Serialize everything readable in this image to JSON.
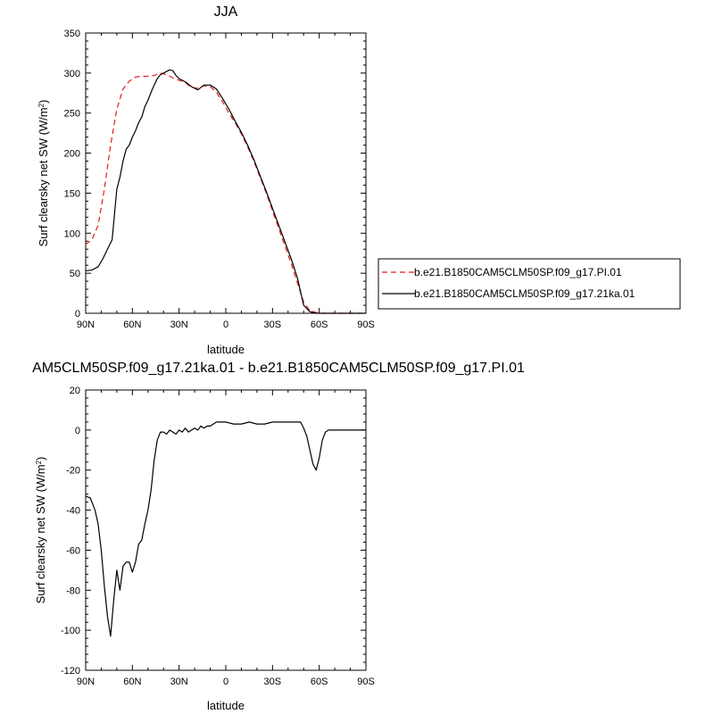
{
  "figure": {
    "top_title": "JJA",
    "bottom_title": "AM5CLM50SP.f09_g17.21ka.01 - b.e21.B1850CAM5CLM50SP.f09_g17.PI.01"
  },
  "chart_data": [
    {
      "type": "line",
      "title": "JJA",
      "xlabel": "latitude",
      "ylabel": "Surf clearsky net SW (W/m",
      "ylabel_sup": "2",
      "ylabel_end": ")",
      "xlim": [
        90,
        -90
      ],
      "ylim": [
        0,
        350
      ],
      "x_ticks": [
        90,
        60,
        30,
        0,
        -30,
        -60,
        -90
      ],
      "x_tick_labels": [
        "90N",
        "60N",
        "30N",
        "0",
        "30S",
        "60S",
        "90S"
      ],
      "y_ticks": [
        0,
        50,
        100,
        150,
        200,
        250,
        300,
        350
      ],
      "y_tick_labels": [
        "0",
        "50",
        "100",
        "150",
        "200",
        "250",
        "300",
        "350"
      ],
      "legend": {
        "placement": "right-lower",
        "entries": [
          {
            "label": "b.e21.B1850CAM5CLM50SP.f09_g17.PI.01",
            "color": "#e41a1c",
            "dash": "dashed"
          },
          {
            "label": "b.e21.B1850CAM5CLM50SP.f09_g17.21ka.01",
            "color": "#000000",
            "dash": "solid"
          }
        ]
      },
      "series": [
        {
          "name": "b.e21.B1850CAM5CLM50SP.f09_g17.PI.01",
          "color": "#e41a1c",
          "dash": "dashed",
          "x": [
            90,
            86,
            82,
            78,
            74,
            70,
            66,
            62,
            58,
            54,
            50,
            46,
            42,
            38,
            34,
            30,
            26,
            22,
            18,
            14,
            10,
            6,
            2,
            -2,
            -6,
            -10,
            -14,
            -18,
            -22,
            -26,
            -30,
            -34,
            -38,
            -42,
            -46,
            -50,
            -54,
            -58,
            -62,
            -66,
            -70,
            -74,
            -78,
            -82,
            -86,
            -90
          ],
          "y": [
            86,
            92,
            110,
            155,
            210,
            255,
            280,
            290,
            295,
            296,
            296,
            297,
            300,
            298,
            294,
            291,
            288,
            282,
            281,
            284,
            283,
            276,
            264,
            250,
            238,
            224,
            208,
            190,
            170,
            150,
            128,
            106,
            84,
            62,
            38,
            14,
            3,
            1,
            0,
            0,
            0,
            0,
            0,
            0,
            0,
            0
          ]
        },
        {
          "name": "b.e21.B1850CAM5CLM50SP.f09_g17.21ka.01",
          "color": "#000000",
          "dash": "solid",
          "x": [
            90,
            86,
            82,
            79,
            76,
            73,
            70,
            68,
            66,
            64,
            62,
            60,
            58,
            56,
            54,
            52,
            50,
            48,
            46,
            44,
            42,
            40,
            38,
            36,
            34,
            32,
            30,
            26,
            22,
            18,
            14,
            10,
            6,
            2,
            -2,
            -6,
            -10,
            -14,
            -18,
            -22,
            -26,
            -30,
            -34,
            -38,
            -42,
            -46,
            -50,
            -54,
            -58,
            -62,
            -66,
            -70,
            -74,
            -78,
            -82,
            -86,
            -90
          ],
          "y": [
            53,
            54,
            58,
            68,
            80,
            92,
            155,
            170,
            190,
            205,
            210,
            220,
            228,
            238,
            245,
            258,
            266,
            276,
            285,
            293,
            298,
            300,
            302,
            304,
            303,
            297,
            293,
            289,
            283,
            279,
            285,
            285,
            280,
            268,
            255,
            240,
            226,
            210,
            192,
            172,
            152,
            131,
            110,
            89,
            68,
            44,
            10,
            2,
            0,
            0,
            0,
            0,
            0,
            0,
            0,
            0,
            0
          ]
        }
      ]
    },
    {
      "type": "line",
      "title": "AM5CLM50SP.f09_g17.21ka.01 - b.e21.B1850CAM5CLM50SP.f09_g17.PI.01",
      "xlabel": "latitude",
      "ylabel": "Surf clearsky net SW (W/m",
      "ylabel_sup": "2",
      "ylabel_end": ")",
      "xlim": [
        90,
        -90
      ],
      "ylim": [
        -120,
        20
      ],
      "x_ticks": [
        90,
        60,
        30,
        0,
        -30,
        -60,
        -90
      ],
      "x_tick_labels": [
        "90N",
        "60N",
        "30N",
        "0",
        "30S",
        "60S",
        "90S"
      ],
      "y_ticks": [
        -120,
        -100,
        -80,
        -60,
        -40,
        -20,
        0,
        20
      ],
      "y_tick_labels": [
        "-120",
        "-100",
        "-80",
        "-60",
        "-40",
        "-20",
        "0",
        "20"
      ],
      "series": [
        {
          "color": "#000000",
          "dash": "solid",
          "x": [
            90,
            87,
            84,
            82,
            80,
            78,
            76,
            74,
            72,
            70,
            68,
            66,
            64,
            62,
            60,
            58,
            56,
            54,
            52,
            50,
            48,
            46,
            44,
            42,
            40,
            38,
            36,
            34,
            32,
            30,
            28,
            26,
            24,
            22,
            20,
            18,
            16,
            14,
            12,
            10,
            8,
            6,
            4,
            2,
            0,
            -5,
            -10,
            -15,
            -20,
            -25,
            -30,
            -35,
            -40,
            -45,
            -48,
            -50,
            -52,
            -54,
            -56,
            -58,
            -60,
            -62,
            -64,
            -66,
            -70,
            -75,
            -80,
            -90
          ],
          "y": [
            -33,
            -34,
            -40,
            -47,
            -60,
            -78,
            -93,
            -103,
            -85,
            -70,
            -80,
            -68,
            -66,
            -66,
            -71,
            -66,
            -57,
            -55,
            -47,
            -40,
            -30,
            -15,
            -5,
            -1,
            -1,
            -2,
            0,
            -1,
            -2,
            0,
            -1,
            1,
            -1,
            0,
            1,
            0,
            2,
            1,
            2,
            2,
            3,
            4,
            4,
            4,
            4,
            3,
            3,
            4,
            3,
            3,
            4,
            4,
            4,
            4,
            4,
            1,
            -3,
            -10,
            -17,
            -20,
            -14,
            -5,
            -1,
            0,
            0,
            0,
            0,
            0
          ]
        }
      ]
    }
  ]
}
